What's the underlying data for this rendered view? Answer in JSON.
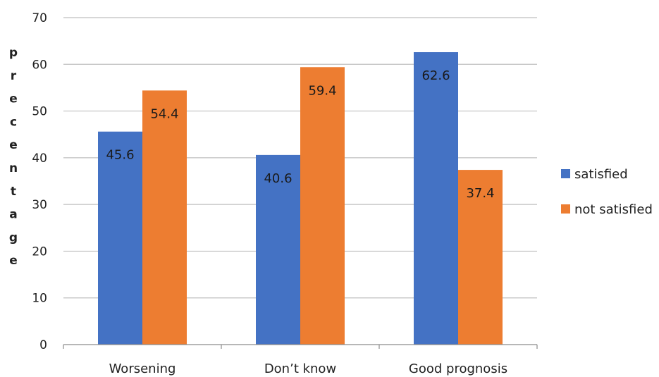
{
  "chart_data": {
    "type": "bar",
    "title": "",
    "xlabel": "",
    "ylabel": "precentage",
    "categories": [
      "Worsening",
      "Don’t know",
      "Good prognosis"
    ],
    "series": [
      {
        "name": "satisfied",
        "color": "#4472c4",
        "values": [
          45.6,
          40.6,
          62.6
        ],
        "labels": [
          "45.6",
          "40.6",
          "62.6"
        ]
      },
      {
        "name": "not satisfied",
        "color": "#ed7d31",
        "values": [
          54.4,
          59.4,
          37.4
        ],
        "labels": [
          "54.4",
          "59.4",
          "37.4"
        ]
      }
    ],
    "ylim": [
      0,
      70
    ],
    "yticks": [
      0,
      10,
      20,
      30,
      40,
      50,
      60,
      70
    ],
    "ytick_labels": [
      "0",
      "10",
      "20",
      "30",
      "40",
      "50",
      "60",
      "70"
    ],
    "grid": true,
    "legend_position": "right"
  }
}
